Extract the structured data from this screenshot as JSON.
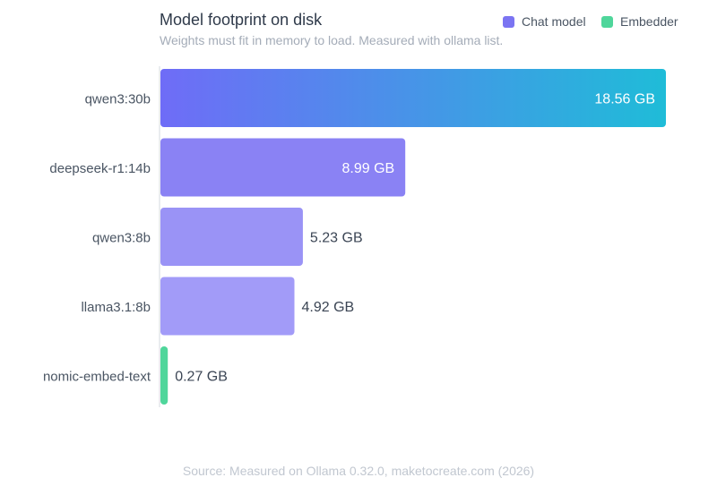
{
  "header": {
    "title": "Model footprint on disk",
    "subtitle": "Weights must fit in memory to load. Measured with ollama list."
  },
  "legend": [
    {
      "label": "Chat model",
      "color": "#7b74f2"
    },
    {
      "label": "Embedder",
      "color": "#4fd69b"
    }
  ],
  "footer": {
    "source": "Source: Measured on Ollama 0.32.0, maketocreate.com (2026)"
  },
  "chart_data": {
    "type": "bar",
    "orientation": "horizontal",
    "title": "Model footprint on disk",
    "subtitle": "Weights must fit in memory to load. Measured with ollama list.",
    "unit": "GB",
    "categories": [
      "qwen3:30b",
      "deepseek-r1:14b",
      "qwen3:8b",
      "llama3.1:8b",
      "nomic-embed-text"
    ],
    "values": [
      18.56,
      8.99,
      5.23,
      4.92,
      0.27
    ],
    "value_labels": [
      "18.56 GB",
      "8.99 GB",
      "5.23 GB",
      "4.92 GB",
      "0.27 GB"
    ],
    "kinds": [
      "Chat model",
      "Chat model",
      "Chat model",
      "Chat model",
      "Embedder"
    ],
    "colors": [
      "#6f6cf7",
      "#8a82f4",
      "#9a93f6",
      "#a29bf8",
      "#4fd69b"
    ],
    "gradient_end": "#1fbcd8",
    "xlim": [
      0,
      18.56
    ],
    "grid": false,
    "legend_position": "top-right"
  }
}
